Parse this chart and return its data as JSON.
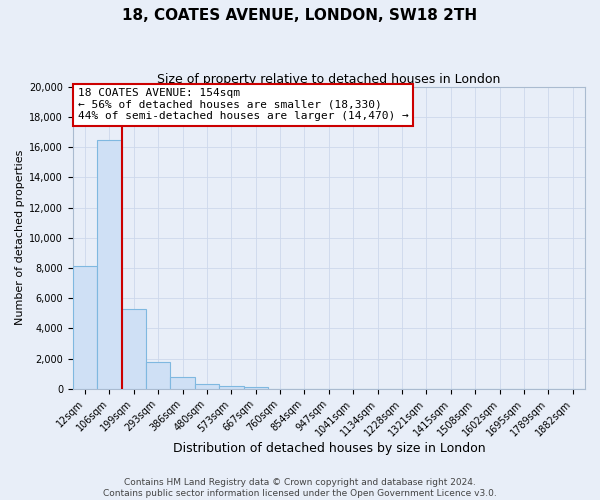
{
  "title": "18, COATES AVENUE, LONDON, SW18 2TH",
  "subtitle": "Size of property relative to detached houses in London",
  "xlabel": "Distribution of detached houses by size in London",
  "ylabel": "Number of detached properties",
  "categories": [
    "12sqm",
    "106sqm",
    "199sqm",
    "293sqm",
    "386sqm",
    "480sqm",
    "573sqm",
    "667sqm",
    "760sqm",
    "854sqm",
    "947sqm",
    "1041sqm",
    "1134sqm",
    "1228sqm",
    "1321sqm",
    "1415sqm",
    "1508sqm",
    "1602sqm",
    "1695sqm",
    "1789sqm",
    "1882sqm"
  ],
  "bar_heights": [
    8100,
    16500,
    5300,
    1800,
    800,
    300,
    175,
    100,
    0,
    0,
    0,
    0,
    0,
    0,
    0,
    0,
    0,
    0,
    0,
    0,
    0
  ],
  "bar_color": "#cfe0f5",
  "bar_edge_color": "#7fb8e0",
  "annotation_line1": "18 COATES AVENUE: 154sqm",
  "annotation_line2": "← 56% of detached houses are smaller (18,330)",
  "annotation_line3": "44% of semi-detached houses are larger (14,470) →",
  "annotation_box_edge_color": "#cc0000",
  "annotation_box_face_color": "white",
  "property_line_x": 1.52,
  "property_line_color": "#cc0000",
  "ylim": [
    0,
    20000
  ],
  "yticks": [
    0,
    2000,
    4000,
    6000,
    8000,
    10000,
    12000,
    14000,
    16000,
    18000,
    20000
  ],
  "grid_color": "#cdd8eb",
  "background_color": "#e8eef8",
  "footer_line1": "Contains HM Land Registry data © Crown copyright and database right 2024.",
  "footer_line2": "Contains public sector information licensed under the Open Government Licence v3.0.",
  "title_fontsize": 11,
  "subtitle_fontsize": 9,
  "xlabel_fontsize": 9,
  "ylabel_fontsize": 8,
  "tick_fontsize": 7,
  "annot_fontsize": 8,
  "footer_fontsize": 6.5
}
